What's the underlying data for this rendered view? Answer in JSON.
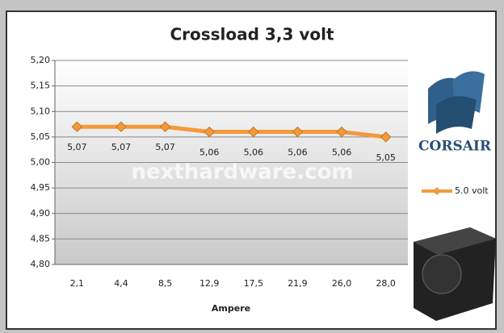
{
  "chart_data": {
    "type": "line",
    "title": "Crossload 3,3 volt",
    "x_label": "Ampere",
    "categories": [
      "2,1",
      "4,4",
      "8,5",
      "12,9",
      "17,5",
      "21,9",
      "26,0",
      "28,0"
    ],
    "series": [
      {
        "name": "5.0 volt",
        "color": "#f39a3c",
        "values": [
          5.07,
          5.07,
          5.07,
          5.06,
          5.06,
          5.06,
          5.06,
          5.05
        ],
        "value_labels": [
          "5,07",
          "5,07",
          "5,07",
          "5,06",
          "5,06",
          "5,06",
          "5,06",
          "5,05"
        ]
      }
    ],
    "ylim": [
      4.8,
      5.2
    ],
    "yticks": [
      {
        "value": 4.8,
        "label": "4,80"
      },
      {
        "value": 4.85,
        "label": "4,85"
      },
      {
        "value": 4.9,
        "label": "4,90"
      },
      {
        "value": 4.95,
        "label": "4,95"
      },
      {
        "value": 5.0,
        "label": "5,00"
      },
      {
        "value": 5.05,
        "label": "5,05"
      },
      {
        "value": 5.1,
        "label": "5,10"
      },
      {
        "value": 5.15,
        "label": "5,15"
      },
      {
        "value": 5.2,
        "label": "5,20"
      }
    ],
    "grid": true,
    "legend": "right",
    "watermark": "nexthardware.com",
    "logo_text": "CORSAIR"
  }
}
